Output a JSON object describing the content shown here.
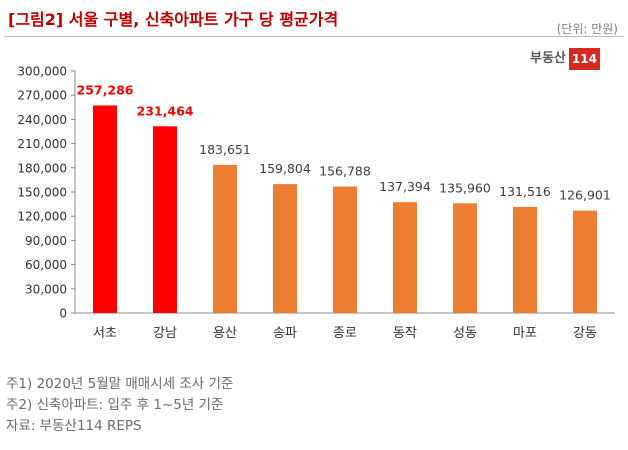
{
  "header": {
    "title": "[그림2] 서울 구별, 신축아파트 가구 당 평균가격",
    "unit": "(단위: 만원)",
    "logo_text": "부동산",
    "logo_number": "114"
  },
  "colors": {
    "title": "#c00000",
    "highlight_bar": "#ff0000",
    "bar": "#ed7d31",
    "highlight_label": "#ff0000",
    "label": "#404040",
    "logo_accent": "#d62a20"
  },
  "chart_data": {
    "type": "bar",
    "title": "[그림2] 서울 구별, 신축아파트 가구 당 평균가격",
    "xlabel": "",
    "ylabel": "",
    "unit": "(단위: 만원)",
    "categories": [
      "서초",
      "강남",
      "용산",
      "송파",
      "종로",
      "동작",
      "성동",
      "마포",
      "강동"
    ],
    "values": [
      257286,
      231464,
      183651,
      159804,
      156788,
      137394,
      135960,
      131516,
      126901
    ],
    "value_labels": [
      "257,286",
      "231,464",
      "183,651",
      "159,804",
      "156,788",
      "137,394",
      "135,960",
      "131,516",
      "126,901"
    ],
    "highlighted": [
      true,
      true,
      false,
      false,
      false,
      false,
      false,
      false,
      false
    ],
    "ylim": [
      0,
      300000
    ],
    "yticks": [
      0,
      30000,
      60000,
      90000,
      120000,
      150000,
      180000,
      210000,
      240000,
      270000,
      300000
    ],
    "ytick_labels": [
      "0",
      "30,000",
      "60,000",
      "90,000",
      "120,000",
      "150,000",
      "180,000",
      "210,000",
      "240,000",
      "270,000",
      "300,000"
    ],
    "grid": false,
    "legend": "none"
  },
  "footer": {
    "note1": "주1) 2020년 5월말 매매시세 조사 기준",
    "note2": "주2) 신축아파트: 입주 후 1~5년 기준",
    "source": "자료: 부동산114 REPS"
  }
}
